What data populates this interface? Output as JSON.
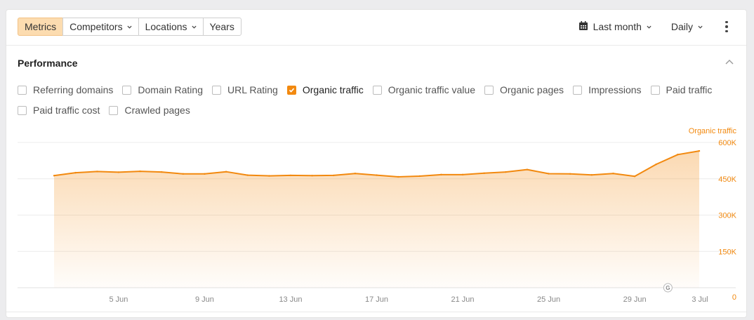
{
  "toolbar": {
    "tabs": [
      {
        "label": "Metrics",
        "active": true,
        "dropdown": false
      },
      {
        "label": "Competitors",
        "active": false,
        "dropdown": true
      },
      {
        "label": "Locations",
        "active": false,
        "dropdown": true
      },
      {
        "label": "Years",
        "active": false,
        "dropdown": false
      }
    ],
    "date_range": "Last month",
    "date_icon": "calendar-icon",
    "granularity": "Daily",
    "more_icon": "more-vertical-icon"
  },
  "performance": {
    "title": "Performance",
    "collapse_icon": "chevron-up-icon",
    "metrics": [
      {
        "label": "Referring domains",
        "checked": false
      },
      {
        "label": "Domain Rating",
        "checked": false
      },
      {
        "label": "URL Rating",
        "checked": false
      },
      {
        "label": "Organic traffic",
        "checked": true
      },
      {
        "label": "Organic traffic value",
        "checked": false
      },
      {
        "label": "Organic pages",
        "checked": false
      },
      {
        "label": "Impressions",
        "checked": false
      },
      {
        "label": "Paid traffic",
        "checked": false
      },
      {
        "label": "Paid traffic cost",
        "checked": false
      },
      {
        "label": "Crawled pages",
        "checked": false
      }
    ]
  },
  "colors": {
    "accent": "#f2890f",
    "accent_fill": "#fcdcb0"
  },
  "chart_data": {
    "type": "area",
    "series": [
      {
        "name": "Organic traffic",
        "values": [
          463000,
          475000,
          480000,
          477000,
          481000,
          478000,
          470000,
          470000,
          479000,
          465000,
          462000,
          464000,
          463000,
          464000,
          472000,
          465000,
          458000,
          461000,
          467000,
          467000,
          473000,
          478000,
          488000,
          471000,
          470000,
          466000,
          472000,
          460000,
          510000,
          550000,
          565000
        ]
      }
    ],
    "x": [
      "2 Jun",
      "3 Jun",
      "4 Jun",
      "5 Jun",
      "6 Jun",
      "7 Jun",
      "8 Jun",
      "9 Jun",
      "10 Jun",
      "11 Jun",
      "12 Jun",
      "13 Jun",
      "14 Jun",
      "15 Jun",
      "16 Jun",
      "17 Jun",
      "18 Jun",
      "19 Jun",
      "20 Jun",
      "21 Jun",
      "22 Jun",
      "23 Jun",
      "24 Jun",
      "25 Jun",
      "26 Jun",
      "27 Jun",
      "28 Jun",
      "29 Jun",
      "30 Jun",
      "1 Jul",
      "2 Jul"
    ],
    "x_ticks": [
      "5 Jun",
      "9 Jun",
      "13 Jun",
      "17 Jun",
      "21 Jun",
      "25 Jun",
      "29 Jun",
      "3 Jul"
    ],
    "y_ticks": [
      "0",
      "150K",
      "300K",
      "450K",
      "600K"
    ],
    "ylim": [
      0,
      600000
    ],
    "axis_title": "Organic traffic",
    "marker": {
      "label": "G",
      "icon": "google-update-icon",
      "at": "1 Jul"
    },
    "grid": true
  }
}
